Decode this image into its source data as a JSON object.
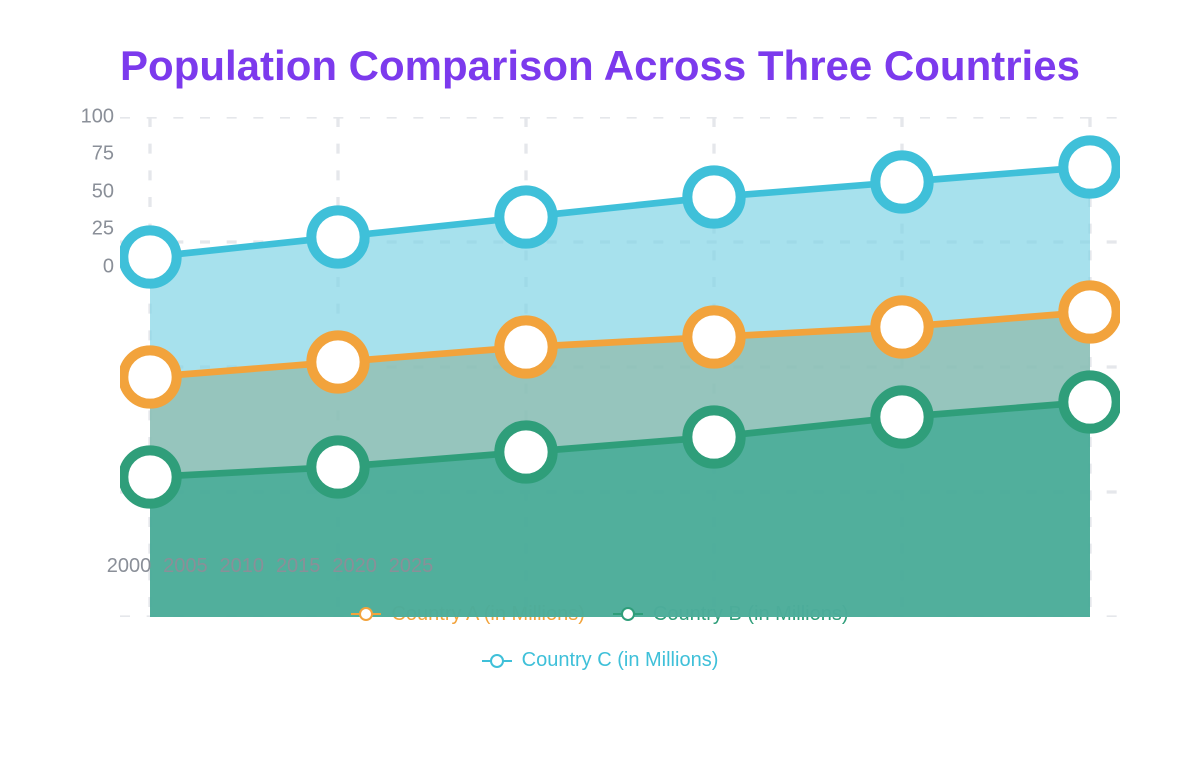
{
  "chart": {
    "title": "Population Comparison Across Three Countries",
    "title_color": "#7c3aed",
    "title_fontsize": 42,
    "title_fontweight": 700,
    "background_color": "#ffffff",
    "axis_label_color": "#8a8f98",
    "axis_label_fontsize": 20,
    "grid_color": "#e5e7eb",
    "grid_dash": "3,5",
    "ylim": [
      0,
      100
    ],
    "ytick_step": 25,
    "yticks": [
      0,
      25,
      50,
      75,
      100
    ],
    "categories": [
      "2000",
      "2005",
      "2010",
      "2015",
      "2020",
      "2025"
    ],
    "x_count": 6,
    "x_padding_pct": 3,
    "marker": {
      "radius": 8,
      "fill": "#ffffff",
      "stroke_width": 3
    },
    "series": [
      {
        "id": "country_c",
        "label": "Country C (in Millions)",
        "color": "#3fc0d9",
        "fill": "#82d4e6",
        "fill_opacity": 0.7,
        "values": [
          72,
          76,
          80,
          84,
          87,
          90
        ]
      },
      {
        "id": "country_a",
        "label": "Country A (in Millions)",
        "color": "#f2a33c",
        "fill": "#8fb9a8",
        "fill_opacity": 0.7,
        "values": [
          48,
          51,
          54,
          56,
          58,
          61
        ]
      },
      {
        "id": "country_b",
        "label": "Country B (in Millions)",
        "color": "#2f9e7a",
        "fill": "#3aa791",
        "fill_opacity": 0.75,
        "values": [
          28,
          30,
          33,
          36,
          40,
          43
        ]
      }
    ],
    "legend": {
      "rows": [
        [
          {
            "series": "country_a",
            "color": "#f2a33c",
            "label": "Country A (in Millions)"
          },
          {
            "series": "country_b",
            "color": "#2f9e7a",
            "label": "Country B (in Millions)"
          }
        ],
        [
          {
            "series": "country_c",
            "color": "#3fc0d9",
            "label": "Country C (in Millions)"
          }
        ]
      ],
      "label_color_matches_series": true,
      "fontsize": 20
    }
  }
}
